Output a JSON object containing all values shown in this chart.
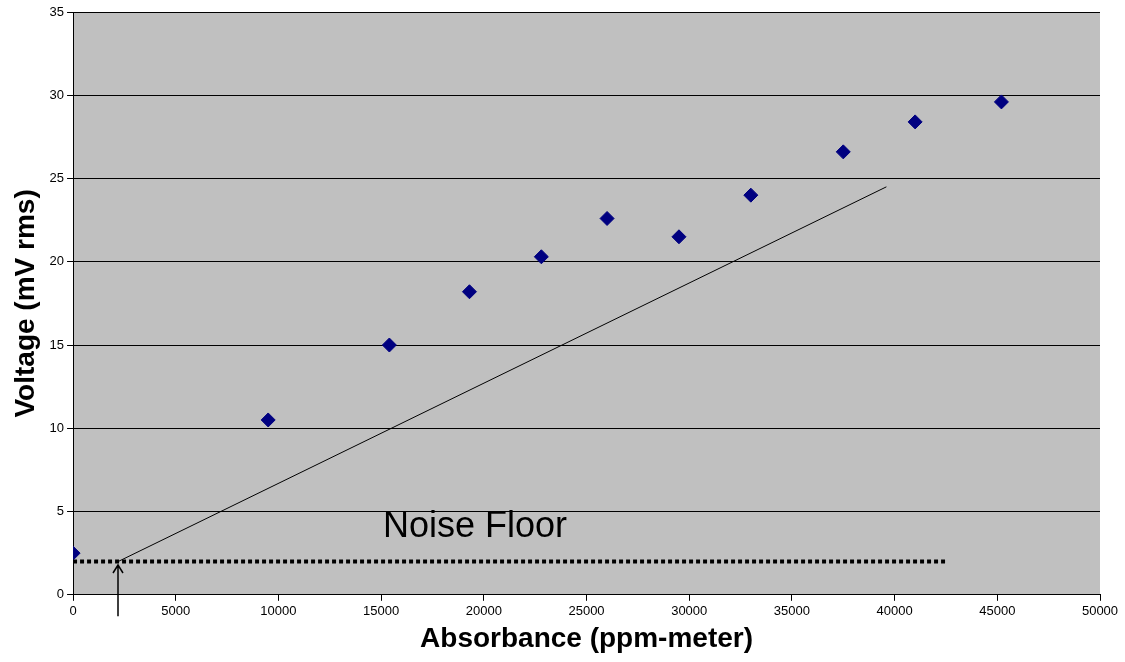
{
  "chart_data": {
    "type": "scatter",
    "xlabel": "Absorbance (ppm-meter)",
    "ylabel": "Voltage (mV rms)",
    "xlim": [
      0,
      50000
    ],
    "xticks": [
      0,
      5000,
      10000,
      15000,
      20000,
      25000,
      30000,
      35000,
      40000,
      45000,
      50000
    ],
    "ylim": [
      0,
      35
    ],
    "yticks": [
      0,
      5,
      10,
      15,
      20,
      25,
      30,
      35
    ],
    "grid": "y",
    "legend": false,
    "series": [
      {
        "color": "#000080",
        "marker": "diamond",
        "x": [
          0,
          9500,
          15400,
          19300,
          22800,
          26000,
          29500,
          33000,
          37500,
          41000,
          45200
        ],
        "values": [
          2.5,
          10.5,
          15,
          18.2,
          20.3,
          22.6,
          21.5,
          24,
          26.6,
          28.4,
          29.6
        ]
      },
      {
        "type": "line",
        "color": "#000000",
        "marker": "none",
        "line_style": "solid",
        "x": [
          2200,
          39600
        ],
        "values": [
          2,
          24.5
        ]
      },
      {
        "type": "line",
        "color": "#000000",
        "marker": "none",
        "line_style": "dotted",
        "x": [
          0,
          42500
        ],
        "values": [
          2,
          2
        ]
      }
    ],
    "annotations": [
      "Noise Floor"
    ]
  }
}
